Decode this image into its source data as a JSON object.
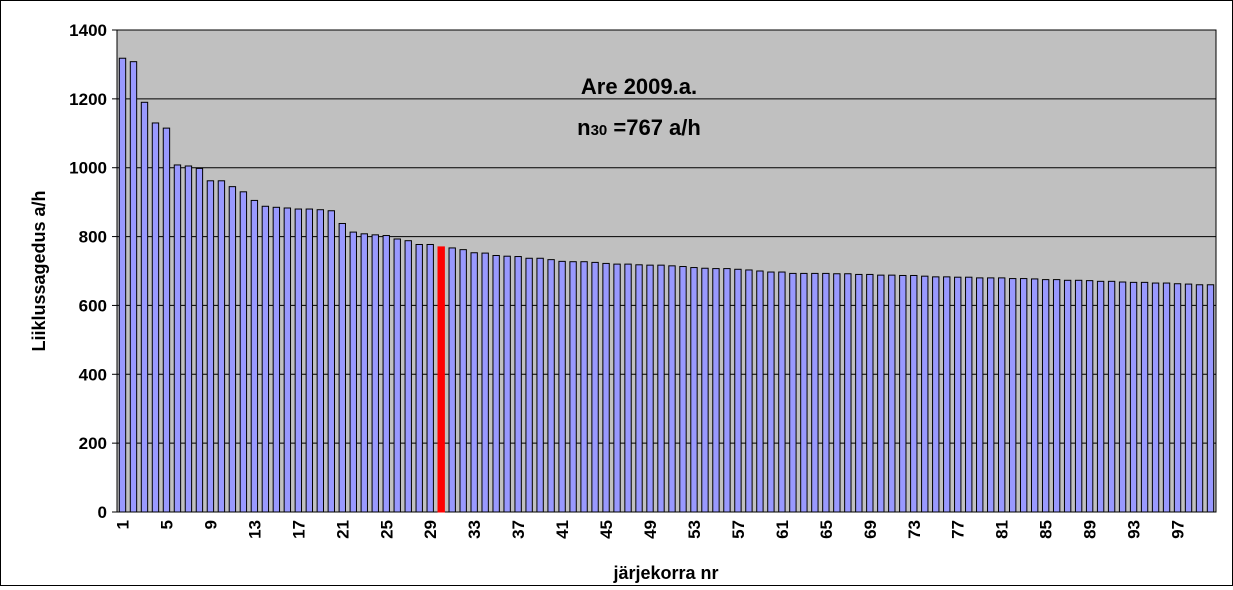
{
  "chart_data": {
    "type": "bar",
    "title": "",
    "xlabel": "järjekorra nr",
    "ylabel": "Liiklussagedus a/h",
    "ylim": [
      0,
      1400
    ],
    "yticks": [
      0,
      200,
      400,
      600,
      800,
      1000,
      1200,
      1400
    ],
    "xtick_labels": [
      "1",
      "5",
      "9",
      "13",
      "17",
      "21",
      "25",
      "29",
      "33",
      "37",
      "41",
      "45",
      "49",
      "53",
      "57",
      "61",
      "65",
      "69",
      "73",
      "77",
      "81",
      "85",
      "89",
      "93",
      "97"
    ],
    "grid": true,
    "annotation": {
      "line1": "Are 2009.a.",
      "n_prefix": "n",
      "n_sub": "30",
      "n_rest": " =767 a/h"
    },
    "highlight_index": 30,
    "colors": {
      "plot_bg": "#c0c0c0",
      "bar": "#9999ff",
      "highlight": "#ff0000",
      "grid": "#000000"
    },
    "categories": [
      1,
      2,
      3,
      4,
      5,
      6,
      7,
      8,
      9,
      10,
      11,
      12,
      13,
      14,
      15,
      16,
      17,
      18,
      19,
      20,
      21,
      22,
      23,
      24,
      25,
      26,
      27,
      28,
      29,
      30,
      31,
      32,
      33,
      34,
      35,
      36,
      37,
      38,
      39,
      40,
      41,
      42,
      43,
      44,
      45,
      46,
      47,
      48,
      49,
      50,
      51,
      52,
      53,
      54,
      55,
      56,
      57,
      58,
      59,
      60,
      61,
      62,
      63,
      64,
      65,
      66,
      67,
      68,
      69,
      70,
      71,
      72,
      73,
      74,
      75,
      76,
      77,
      78,
      79,
      80,
      81,
      82,
      83,
      84,
      85,
      86,
      87,
      88,
      89,
      90,
      91,
      92,
      93,
      94,
      95,
      96,
      97,
      98,
      99,
      100
    ],
    "values": [
      1318,
      1308,
      1190,
      1130,
      1115,
      1008,
      1005,
      998,
      962,
      962,
      945,
      930,
      905,
      888,
      885,
      883,
      880,
      880,
      878,
      875,
      838,
      813,
      808,
      805,
      803,
      793,
      788,
      777,
      777,
      770,
      767,
      762,
      753,
      752,
      745,
      743,
      742,
      737,
      737,
      733,
      728,
      727,
      727,
      725,
      722,
      720,
      720,
      718,
      717,
      717,
      715,
      713,
      710,
      708,
      707,
      707,
      705,
      703,
      700,
      697,
      697,
      693,
      693,
      693,
      693,
      692,
      692,
      690,
      690,
      688,
      688,
      687,
      687,
      685,
      683,
      683,
      682,
      682,
      680,
      680,
      680,
      678,
      678,
      677,
      675,
      675,
      673,
      673,
      672,
      670,
      670,
      668,
      667,
      667,
      665,
      665,
      663,
      662,
      660,
      660
    ]
  }
}
